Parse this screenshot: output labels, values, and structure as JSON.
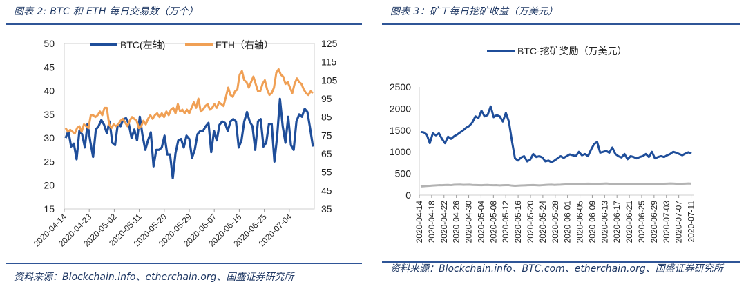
{
  "left": {
    "figure_title": "图表 2: BTC 和 ETH 每日交易数（万个）",
    "source": "资料来源：Blockchain.info、etherchain.org、国盛证券研究所"
  },
  "right": {
    "figure_title": "图表 3：矿工每日挖矿收益（万美元）",
    "source": "资料来源：Blockchain.info、BTC.com、etherchain.org、国盛证券研究所"
  },
  "colors": {
    "btc": "#1f4e9a",
    "eth": "#f0a055",
    "grey_series": "#b3b3b3",
    "rule": "#2f5597",
    "title": "#1f3864"
  },
  "chart_data": [
    {
      "type": "line",
      "legend_position": "top",
      "grid": false,
      "x_tick_labels": [
        "2020-04-14",
        "2020-04-23",
        "2020-05-02",
        "2020-05-11",
        "2020-05-20",
        "2020-05-29",
        "2020-06-07",
        "2020-06-16",
        "2020-06-25",
        "2020-07-04"
      ],
      "x_range": [
        "2020-04-14",
        "2020-07-13"
      ],
      "y_left_range": [
        15,
        50
      ],
      "y_left_ticks": [
        "15",
        "20",
        "25",
        "30",
        "35",
        "40",
        "45",
        "50"
      ],
      "y_right_range": [
        35,
        125
      ],
      "y_right_ticks": [
        "35",
        "45",
        "55",
        "65",
        "75",
        "85",
        "95",
        "105",
        "115",
        "125"
      ],
      "series": [
        {
          "name": "BTC(左轴)",
          "axis": "left",
          "color": "#1f4e9a",
          "values": [
            30.0,
            31.5,
            28.2,
            28.8,
            25.5,
            31.5,
            30.8,
            28.0,
            33.0,
            29.2,
            26.0,
            31.8,
            32.5,
            33.8,
            32.8,
            31.0,
            33.5,
            29.0,
            28.5,
            33.0,
            32.5,
            34.0,
            34.2,
            33.0,
            30.0,
            31.8,
            29.5,
            34.5,
            30.5,
            27.5,
            29.5,
            31.2,
            24.0,
            27.5,
            27.5,
            28.0,
            30.5,
            26.5,
            26.5,
            21.5,
            26.8,
            29.5,
            29.8,
            28.0,
            30.5,
            29.8,
            25.8,
            27.5,
            30.8,
            31.5,
            31.5,
            32.5,
            33.2,
            27.0,
            31.5,
            29.5,
            32.8,
            33.5,
            33.2,
            31.5,
            33.5,
            34.0,
            33.5,
            28.0,
            29.5,
            33.5,
            35.5,
            33.5,
            32.5,
            27.5,
            33.5,
            34.0,
            28.2,
            29.0,
            33.0,
            33.0,
            25.0,
            30.5,
            38.3,
            32.5,
            29.0,
            34.5,
            28.5,
            27.5,
            33.5,
            35.0,
            34.5,
            36.2,
            35.5,
            32.0,
            28.2
          ]
        },
        {
          "name": "ETH（右轴）",
          "axis": "right",
          "color": "#f0a055",
          "values": [
            79,
            77,
            78,
            77,
            76,
            79,
            80,
            77,
            81,
            80,
            79,
            86,
            86,
            85,
            86,
            88,
            86,
            90,
            90,
            81,
            79,
            81,
            80,
            81,
            83,
            84,
            82,
            80,
            83,
            85,
            84,
            83,
            79,
            80,
            83,
            81,
            84,
            86,
            84,
            86,
            87,
            85,
            87,
            85,
            88,
            86,
            89,
            90,
            87,
            92,
            88,
            89,
            87,
            89,
            87,
            90,
            93,
            90,
            95,
            88,
            89,
            91,
            92,
            89,
            90,
            92,
            90,
            93,
            92,
            91,
            96,
            101,
            97,
            96,
            99,
            100,
            108,
            110,
            105,
            104,
            101,
            104,
            107,
            103,
            99,
            99,
            103,
            105,
            100,
            97,
            98,
            101,
            109,
            111,
            108,
            107,
            103,
            104,
            101,
            98,
            103,
            106,
            104,
            103,
            100,
            98,
            97,
            99,
            98
          ]
        }
      ]
    },
    {
      "type": "line",
      "legend_position": "top",
      "grid": false,
      "x_tick_labels": [
        "2020-04-14",
        "2020-04-18",
        "2020-04-22",
        "2020-04-26",
        "2020-04-30",
        "2020-05-04",
        "2020-05-08",
        "2020-05-12",
        "2020-05-16",
        "2020-05-20",
        "2020-05-24",
        "2020-05-28",
        "2020-06-01",
        "2020-06-05",
        "2020-06-09",
        "2020-06-13",
        "2020-06-17",
        "2020-06-21",
        "2020-06-25",
        "2020-06-29",
        "2020-07-03",
        "2020-07-07",
        "2020-07-11"
      ],
      "x_range": [
        "2020-04-14",
        "2020-07-12"
      ],
      "y_range": [
        0,
        2500
      ],
      "y_ticks": [
        "0",
        "500",
        "1000",
        "1500",
        "2000",
        "2500"
      ],
      "series": [
        {
          "name": "BTC-挖矿奖励（万美元）",
          "color": "#1f4e9a",
          "values": [
            1460,
            1450,
            1400,
            1200,
            1430,
            1380,
            1430,
            1300,
            1200,
            1350,
            1300,
            1360,
            1400,
            1450,
            1500,
            1560,
            1600,
            1680,
            1820,
            1780,
            1950,
            1820,
            1850,
            2050,
            1800,
            1850,
            1820,
            1700,
            1900,
            1700,
            1250,
            850,
            800,
            870,
            900,
            780,
            820,
            950,
            880,
            900,
            870,
            780,
            800,
            760,
            800,
            850,
            900,
            860,
            900,
            940,
            920,
            900,
            1000,
            920,
            950,
            900,
            1050,
            1180,
            1230,
            980,
            1000,
            1020,
            980,
            1100,
            950,
            900,
            870,
            950,
            830,
            900,
            880,
            850,
            880,
            900,
            950,
            880,
            1000,
            850,
            880,
            900,
            880,
            920,
            950,
            1000,
            980,
            950,
            920,
            960,
            990,
            960
          ]
        },
        {
          "color": "#b3b3b3",
          "values": [
            200,
            205,
            210,
            215,
            220,
            225,
            230,
            228,
            232,
            235,
            230,
            238,
            240,
            242,
            236,
            238,
            240,
            235,
            232,
            230,
            228,
            232,
            235,
            230,
            228,
            230,
            225,
            228,
            230,
            230,
            220,
            215,
            218,
            222,
            225,
            228,
            230,
            232,
            228,
            225,
            230,
            235,
            238,
            240,
            235,
            238,
            240,
            245,
            248,
            250,
            252,
            255,
            258,
            260,
            262,
            265,
            262,
            260,
            258,
            262,
            265,
            268,
            262,
            260,
            258,
            255,
            258,
            260,
            262,
            258,
            255,
            252,
            255,
            258,
            260,
            262,
            258,
            255,
            258,
            260,
            262,
            265,
            268,
            266,
            262,
            260,
            262,
            265,
            268,
            265
          ]
        }
      ]
    }
  ]
}
